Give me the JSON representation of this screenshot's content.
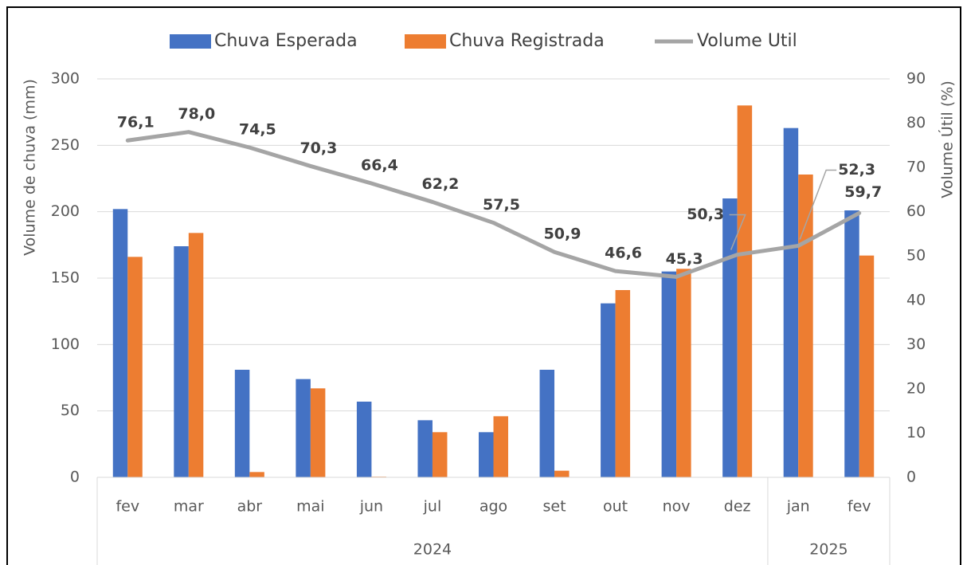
{
  "chart_data": {
    "type": "bar_line",
    "categories": [
      "fev",
      "mar",
      "abr",
      "mai",
      "jun",
      "jul",
      "ago",
      "set",
      "out",
      "nov",
      "dez",
      "jan",
      "fev"
    ],
    "category_groups": [
      {
        "label": "2024",
        "size": 11
      },
      {
        "label": "2025",
        "size": 2
      }
    ],
    "series": [
      {
        "name": "Chuva Esperada",
        "type": "bar",
        "color": "#4472c4",
        "values": [
          202,
          174,
          81,
          74,
          57,
          43,
          34,
          81,
          131,
          155,
          210,
          263,
          201
        ]
      },
      {
        "name": "Chuva Registrada",
        "type": "bar",
        "color": "#ed7d31",
        "values": [
          166,
          184,
          4,
          67,
          0.5,
          34,
          46,
          5,
          141,
          157,
          280,
          228,
          167
        ]
      },
      {
        "name": "Volume Util",
        "type": "line",
        "axis": "y2",
        "color": "#a5a5a5",
        "values": [
          76.1,
          78.0,
          74.5,
          70.3,
          66.4,
          62.2,
          57.5,
          50.9,
          46.6,
          45.3,
          50.3,
          52.3,
          59.7
        ],
        "value_labels": [
          "76,1",
          "78,0",
          "74,5",
          "70,3",
          "66,4",
          "62,2",
          "57,5",
          "50,9",
          "46,6",
          "45,3",
          "50,3",
          "52,3",
          "59,7"
        ]
      }
    ],
    "ylabel": "Volume de chuva (mm)",
    "y2label": "Volume Útil (%)",
    "ylim": [
      0,
      300
    ],
    "yticks": [
      0,
      50,
      100,
      150,
      200,
      250,
      300
    ],
    "y2lim": [
      0,
      90
    ],
    "y2ticks": [
      0,
      10,
      20,
      30,
      40,
      50,
      60,
      70,
      80,
      90
    ],
    "grid": true,
    "legend": "top"
  }
}
